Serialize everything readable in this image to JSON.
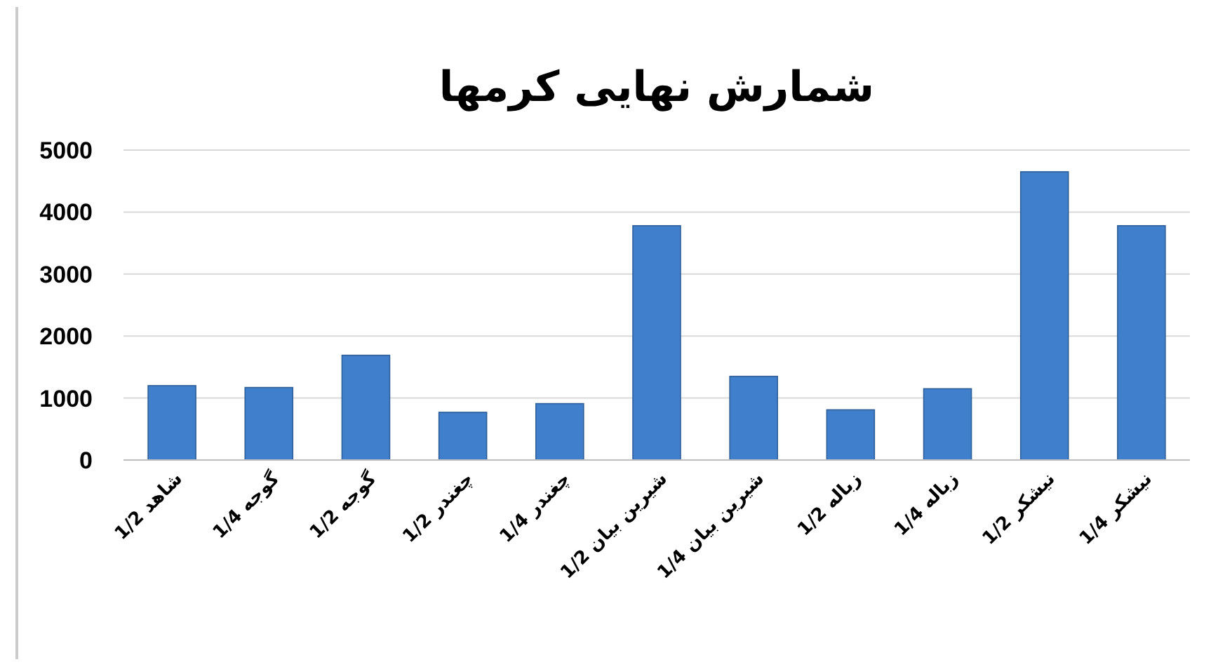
{
  "chart_data": {
    "type": "bar",
    "title": "شمارش نهایی کرمها",
    "categories": [
      "شاهد 1/2",
      "گوجه 1/4",
      "گوجه 1/2",
      "چغندر 1/2",
      "چغندر 1/4",
      "شیرین بیان 1/2",
      "شیرین بیان 1/4",
      "زباله 1/2",
      "زباله 1/4",
      "نیشکر 1/2",
      "نیشکر 1/4"
    ],
    "values": [
      1200,
      1170,
      1690,
      770,
      910,
      3780,
      1350,
      810,
      1150,
      4650,
      3780
    ],
    "color": "#3f7fcc",
    "ylim": [
      0,
      5000
    ],
    "yticks": [
      0,
      1000,
      2000,
      3000,
      4000,
      5000
    ],
    "grid": "y"
  }
}
